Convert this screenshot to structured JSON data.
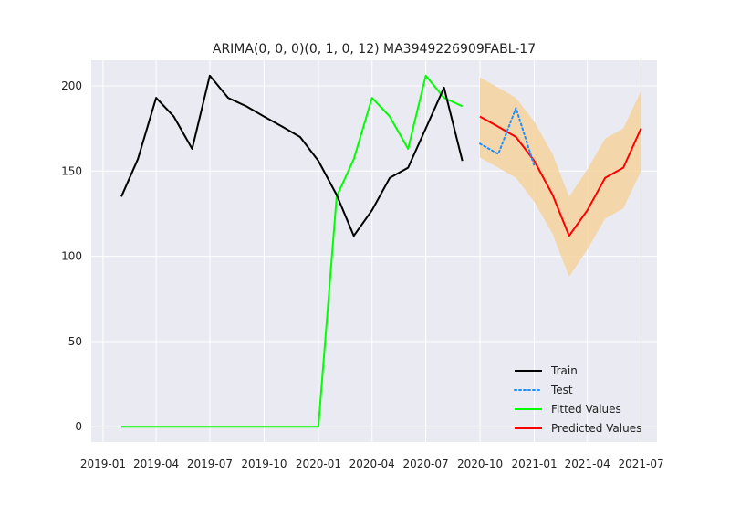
{
  "chart_data": {
    "type": "line",
    "title": "ARIMA(0, 0, 0)(0, 1, 0, 12) MA3949226909FABL-17",
    "xlabel": "",
    "ylabel": "",
    "xlim": [
      "2018-12-12",
      "2021-07-28"
    ],
    "ylim": [
      -9,
      215
    ],
    "grid": true,
    "legend_position": "lower-right",
    "x_ticks": [
      "2019-01",
      "2019-04",
      "2019-07",
      "2019-10",
      "2020-01",
      "2020-04",
      "2020-07",
      "2020-10",
      "2021-01",
      "2021-04",
      "2021-07"
    ],
    "y_ticks": [
      0,
      50,
      100,
      150,
      200
    ],
    "confidence_interval": {
      "x": [
        "2020-10-01",
        "2020-11-01",
        "2020-12-01",
        "2021-01-01",
        "2021-02-01",
        "2021-03-01",
        "2021-04-01",
        "2021-05-01",
        "2021-06-01",
        "2021-07-01"
      ],
      "lower": [
        158,
        152,
        146,
        132,
        113,
        88,
        104,
        122,
        128,
        150
      ],
      "upper": [
        205,
        199,
        193,
        179,
        160,
        135,
        151,
        169,
        175,
        197
      ],
      "color": "#f5d49e"
    },
    "series": [
      {
        "name": "Train",
        "color": "#000000",
        "style": "solid",
        "x": [
          "2019-02-01",
          "2019-03-01",
          "2019-04-01",
          "2019-05-01",
          "2019-06-01",
          "2019-07-01",
          "2019-08-01",
          "2019-09-01",
          "2019-10-01",
          "2019-11-01",
          "2019-12-01",
          "2020-01-01",
          "2020-02-01",
          "2020-03-01",
          "2020-04-01",
          "2020-05-01",
          "2020-06-01",
          "2020-07-01",
          "2020-08-01",
          "2020-09-01"
        ],
        "values": [
          135,
          157,
          193,
          182,
          163,
          206,
          193,
          188,
          182,
          176,
          170,
          156,
          136,
          112,
          127,
          146,
          152,
          175,
          199,
          156
        ]
      },
      {
        "name": "Test",
        "color": "#1f8fff",
        "style": "dotted",
        "x": [
          "2020-10-01",
          "2020-11-01",
          "2020-12-01",
          "2021-01-01"
        ],
        "values": [
          166,
          160,
          187,
          153
        ]
      },
      {
        "name": "Fitted Values",
        "color": "#00ff00",
        "style": "solid",
        "x": [
          "2019-02-01",
          "2019-03-01",
          "2019-04-01",
          "2019-05-01",
          "2019-06-01",
          "2019-07-01",
          "2019-08-01",
          "2019-09-01",
          "2019-10-01",
          "2019-11-01",
          "2019-12-01",
          "2020-01-01",
          "2020-02-01",
          "2020-03-01",
          "2020-04-01",
          "2020-05-01",
          "2020-06-01",
          "2020-07-01",
          "2020-08-01",
          "2020-09-01"
        ],
        "values": [
          0,
          0,
          0,
          0,
          0,
          0,
          0,
          0,
          0,
          0,
          0,
          0,
          135,
          157,
          193,
          182,
          163,
          206,
          193,
          188
        ]
      },
      {
        "name": "Predicted Values",
        "color": "#ff0000",
        "style": "solid",
        "x": [
          "2020-10-01",
          "2020-11-01",
          "2020-12-01",
          "2021-01-01",
          "2021-02-01",
          "2021-03-01",
          "2021-04-01",
          "2021-05-01",
          "2021-06-01",
          "2021-07-01"
        ],
        "values": [
          182,
          176,
          170,
          156,
          136,
          112,
          127,
          146,
          152,
          175
        ]
      }
    ],
    "colors": {
      "plot_background": "#eaeaf2",
      "grid": "#ffffff"
    }
  }
}
